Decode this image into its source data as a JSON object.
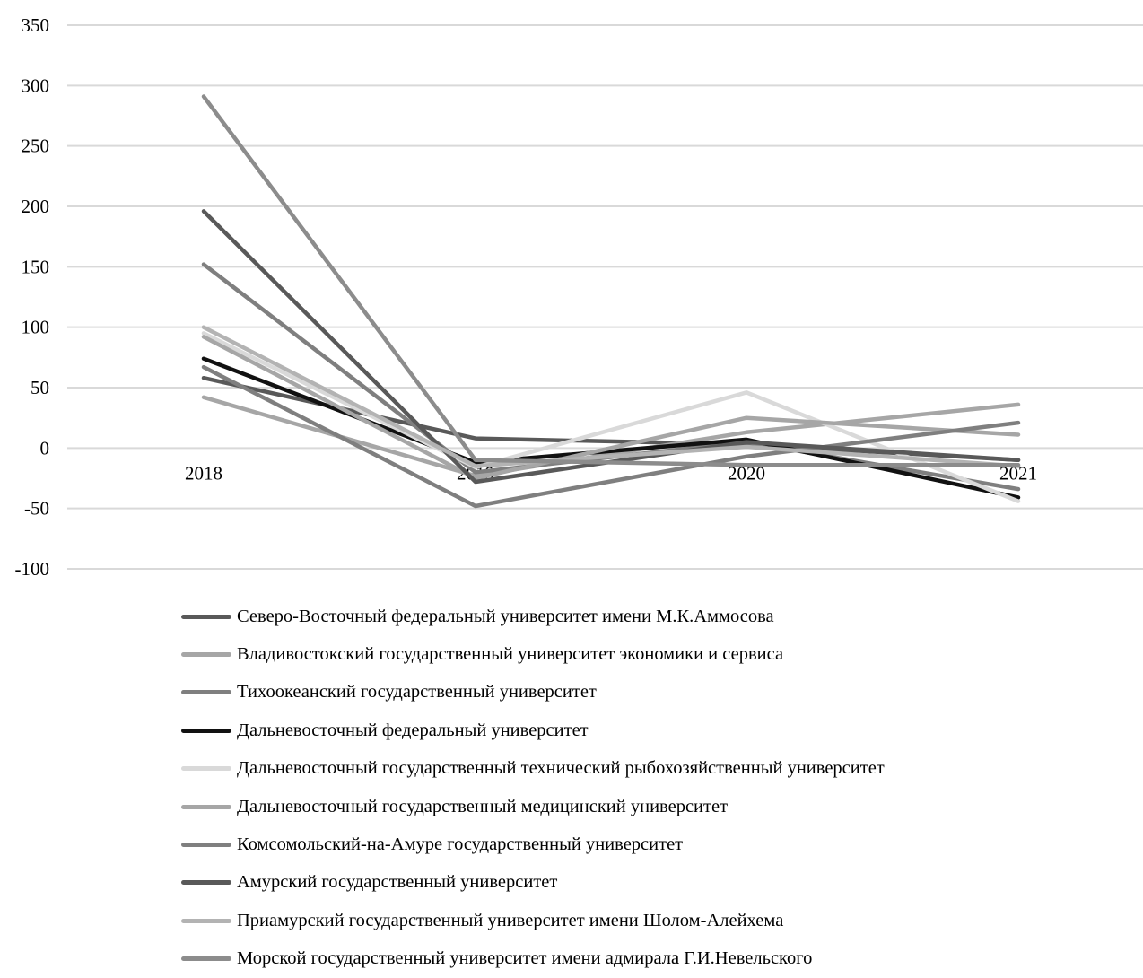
{
  "chart_data": {
    "type": "line",
    "title": "",
    "xlabel": "",
    "ylabel": "",
    "x": [
      "2018",
      "2019",
      "2020",
      "2021"
    ],
    "ylim": [
      -100,
      350
    ],
    "yticks": [
      350,
      300,
      250,
      200,
      150,
      100,
      50,
      0,
      -50,
      -100
    ],
    "ytick_labels": [
      "350",
      "300",
      "250",
      "200",
      "150",
      "100",
      "50",
      "0",
      "-50",
      "-100"
    ],
    "grid": true,
    "legend_position": "bottom",
    "series": [
      {
        "name": "Северо-Восточный федеральный университет имени М.К.Аммосова",
        "color": "#595959",
        "values": [
          58,
          8,
          3,
          -10
        ]
      },
      {
        "name": "Владивостокский государственный университет экономики и сервиса",
        "color": "#a6a6a6",
        "values": [
          42,
          -23,
          13,
          36
        ]
      },
      {
        "name": "Тихоокеанский государственный университет",
        "color": "#7f7f7f",
        "values": [
          152,
          -20,
          5,
          -34
        ]
      },
      {
        "name": "Дальневосточный федеральный университет",
        "color": "#111111",
        "values": [
          74,
          -12,
          7,
          -41
        ]
      },
      {
        "name": "Дальневосточный государственный технический рыбохозяйственный университет",
        "color": "#d9d9d9",
        "values": [
          95,
          -16,
          46,
          -44
        ]
      },
      {
        "name": "Дальневосточный государственный медицинский университет",
        "color": "#a6a6a6",
        "values": [
          92,
          -25,
          25,
          11
        ]
      },
      {
        "name": "Комсомольский-на-Амуре государственный университет",
        "color": "#7f7f7f",
        "values": [
          67,
          -48,
          -7,
          21
        ]
      },
      {
        "name": "Амурский государственный университет",
        "color": "#595959",
        "values": [
          196,
          -28,
          5,
          -10
        ]
      },
      {
        "name": "Приамурский государственный университет имени Шолом-Алейхема",
        "color": "#b3b3b3",
        "values": [
          100,
          -15,
          1,
          -15
        ]
      },
      {
        "name": "Морской государственный университет имени адмирала Г.И.Невельского",
        "color": "#8c8c8c",
        "values": [
          291,
          -10,
          -14,
          -14
        ]
      }
    ]
  }
}
